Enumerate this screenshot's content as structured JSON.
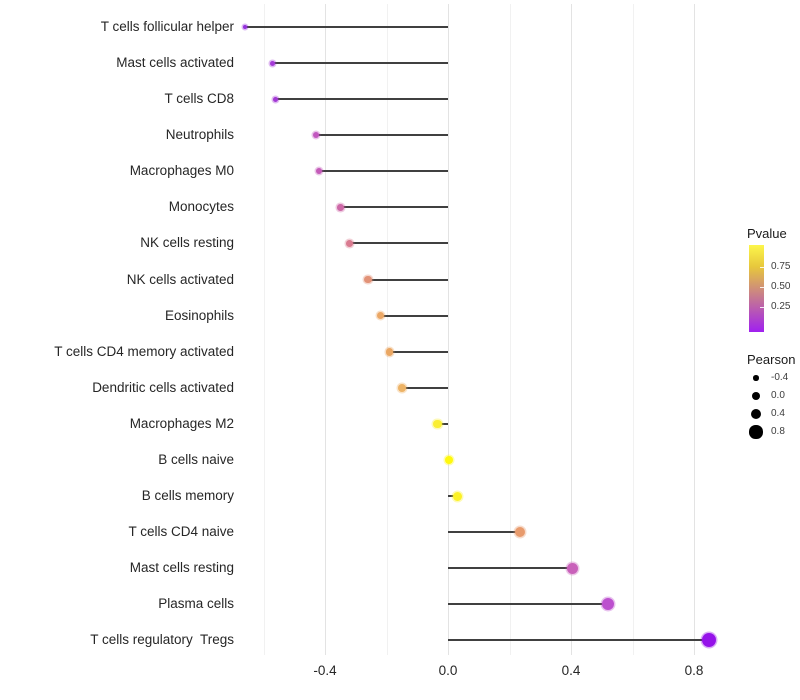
{
  "chart_data": {
    "type": "lollipop",
    "orientation": "horizontal",
    "title": "",
    "xlabel": "",
    "ylabel": "",
    "categories": [
      "T cells follicular helper",
      "Mast cells activated",
      "T cells CD8",
      "Neutrophils",
      "Macrophages M0",
      "Monocytes",
      "NK cells resting",
      "NK cells activated",
      "Eosinophils",
      "T cells CD4 memory activated",
      "Dendritic cells activated",
      "Macrophages M2",
      "B cells naive",
      "B cells memory",
      "T cells CD4 naive",
      "Mast cells resting",
      "Plasma cells",
      "T cells regulatory  Tregs"
    ],
    "series": [
      {
        "name": "Pearson",
        "values": [
          -0.66,
          -0.57,
          -0.56,
          -0.43,
          -0.42,
          -0.35,
          -0.32,
          -0.26,
          -0.22,
          -0.19,
          -0.15,
          -0.035,
          0.003,
          0.03,
          0.235,
          0.405,
          0.52,
          0.85
        ]
      }
    ],
    "point_colors": [
      "#9430DC",
      "#A43AD7",
      "#A338D5",
      "#C257BF",
      "#C45BB9",
      "#CD68A7",
      "#D97B90",
      "#E29277",
      "#EBA765",
      "#EAA763",
      "#EDB366",
      "#FAEE33",
      "#FFF80D",
      "#FBF125",
      "#E89B6D",
      "#C961BA",
      "#BC50CE",
      "#9512E9"
    ],
    "pvalue_approx": [
      0.05,
      0.1,
      0.1,
      0.25,
      0.27,
      0.35,
      0.42,
      0.5,
      0.58,
      0.6,
      0.65,
      0.92,
      1.0,
      0.95,
      0.55,
      0.3,
      0.2,
      0.03
    ],
    "axis": {
      "x_major_ticks": [
        -0.4,
        0.0,
        0.4,
        0.8
      ],
      "x_minor_ticks": [
        -0.6,
        -0.2,
        0.2,
        0.6
      ],
      "x_tick_labels": [
        "-0.4",
        "0.0",
        "0.4",
        "0.8"
      ],
      "xlim": [
        -0.73,
        0.92
      ],
      "grid": "vertical major and minor, light gray, white background"
    },
    "legend": {
      "pvalue": {
        "title": "Pvalue",
        "gradient_high": "#FFFF00",
        "gradient_low": "#A020F0",
        "tick_labels": [
          "0.75",
          "0.50",
          "0.25"
        ],
        "range": [
          0,
          1
        ]
      },
      "pearson": {
        "title": "Pearson",
        "items": [
          {
            "label": "-0.4",
            "value": -0.4
          },
          {
            "label": "0.0",
            "value": 0.0
          },
          {
            "label": "0.4",
            "value": 0.4
          },
          {
            "label": "0.8",
            "value": 0.8
          }
        ],
        "swatch_color": "#000000"
      }
    },
    "style": {
      "stem_color": "#404040",
      "text_color": "#262626",
      "grid_major_color": "#E3E3E3",
      "grid_minor_color": "#F1F1F1",
      "background": "#FFFFFF"
    }
  }
}
